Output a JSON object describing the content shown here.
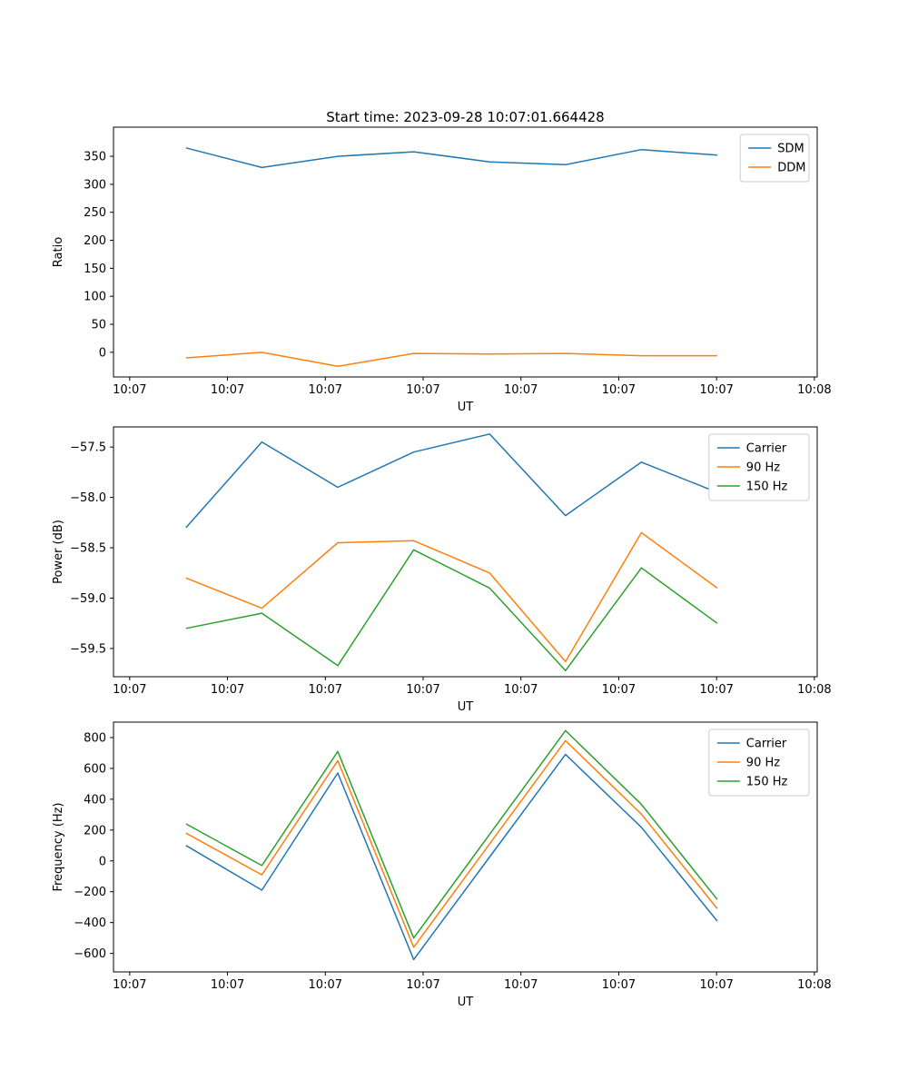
{
  "figure": {
    "title": "Start time: 2023-09-28 10:07:01.664428"
  },
  "chart_data": [
    {
      "type": "line",
      "name": "ratio",
      "ylabel": "Ratio",
      "xlabel": "UT",
      "ylim": [
        -44,
        402
      ],
      "yticks": [
        {
          "v": 0,
          "label": "0"
        },
        {
          "v": 50,
          "label": "50"
        },
        {
          "v": 100,
          "label": "100"
        },
        {
          "v": 150,
          "label": "150"
        },
        {
          "v": 200,
          "label": "200"
        },
        {
          "v": 250,
          "label": "250"
        },
        {
          "v": 300,
          "label": "300"
        },
        {
          "v": 350,
          "label": "350"
        }
      ],
      "xticklabels": [
        "10:07",
        "10:07",
        "10:07",
        "10:07",
        "10:07",
        "10:07",
        "10:07",
        "10:08"
      ],
      "legend_position": "upper right",
      "grid": false,
      "series": [
        {
          "name": "SDM",
          "color": "#1f77b4",
          "values": [
            365,
            330,
            350,
            358,
            340,
            335,
            362,
            352
          ]
        },
        {
          "name": "DDM",
          "color": "#ff7f0e",
          "values": [
            -10,
            0,
            -25,
            -2,
            -3,
            -2,
            -6,
            -6
          ]
        }
      ]
    },
    {
      "type": "line",
      "name": "power",
      "ylabel": "Power (dB)",
      "xlabel": "UT",
      "ylim": [
        -59.78,
        -57.3
      ],
      "yticks": [
        {
          "v": -57.5,
          "label": "−57.5"
        },
        {
          "v": -58.0,
          "label": "−58.0"
        },
        {
          "v": -58.5,
          "label": "−58.5"
        },
        {
          "v": -59.0,
          "label": "−59.0"
        },
        {
          "v": -59.5,
          "label": "−59.5"
        }
      ],
      "xticklabels": [
        "10:07",
        "10:07",
        "10:07",
        "10:07",
        "10:07",
        "10:07",
        "10:07",
        "10:08"
      ],
      "legend_position": "upper right",
      "grid": false,
      "series": [
        {
          "name": "Carrier",
          "color": "#1f77b4",
          "values": [
            -58.3,
            -57.45,
            -57.9,
            -57.55,
            -57.37,
            -58.18,
            -57.65,
            -57.95
          ]
        },
        {
          "name": "90 Hz",
          "color": "#ff7f0e",
          "values": [
            -58.8,
            -59.1,
            -58.45,
            -58.43,
            -58.75,
            -59.63,
            -58.35,
            -58.9
          ]
        },
        {
          "name": "150 Hz",
          "color": "#2ca02c",
          "values": [
            -59.3,
            -59.15,
            -59.67,
            -58.52,
            -58.9,
            -59.72,
            -58.7,
            -59.25
          ]
        }
      ]
    },
    {
      "type": "line",
      "name": "frequency",
      "ylabel": "Frequency (Hz)",
      "xlabel": "UT",
      "ylim": [
        -720,
        900
      ],
      "yticks": [
        {
          "v": -600,
          "label": "−600"
        },
        {
          "v": -400,
          "label": "−400"
        },
        {
          "v": -200,
          "label": "−200"
        },
        {
          "v": 0,
          "label": "0"
        },
        {
          "v": 200,
          "label": "200"
        },
        {
          "v": 400,
          "label": "400"
        },
        {
          "v": 600,
          "label": "600"
        },
        {
          "v": 800,
          "label": "800"
        }
      ],
      "xticklabels": [
        "10:07",
        "10:07",
        "10:07",
        "10:07",
        "10:07",
        "10:07",
        "10:07",
        "10:08"
      ],
      "legend_position": "upper right",
      "grid": false,
      "series": [
        {
          "name": "Carrier",
          "color": "#1f77b4",
          "values": [
            100,
            -190,
            570,
            -640,
            25,
            690,
            218,
            -390
          ]
        },
        {
          "name": "90 Hz",
          "color": "#ff7f0e",
          "values": [
            180,
            -90,
            650,
            -560,
            110,
            780,
            303,
            -310
          ]
        },
        {
          "name": "150 Hz",
          "color": "#2ca02c",
          "values": [
            240,
            -30,
            710,
            -500,
            172,
            845,
            366,
            -250
          ]
        }
      ]
    }
  ]
}
